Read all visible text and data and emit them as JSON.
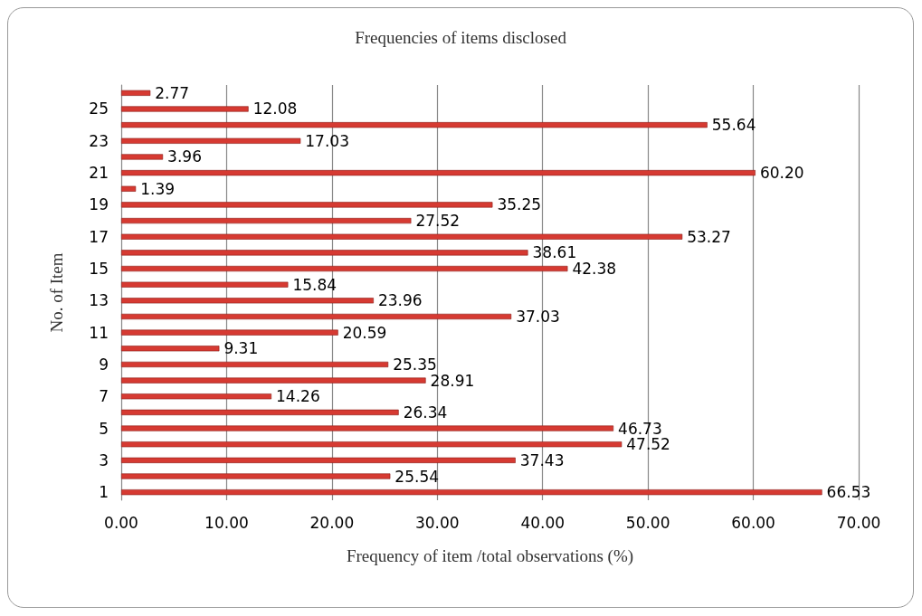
{
  "chart_data": {
    "type": "bar",
    "orientation": "horizontal",
    "title": "Frequencies of items disclosed",
    "xlabel": "Frequency of item /total observations (%)",
    "ylabel": "No. of Item",
    "categories": [
      null,
      "25",
      null,
      "23",
      null,
      "21",
      null,
      "19",
      null,
      "17",
      null,
      "15",
      null,
      "13",
      null,
      "11",
      null,
      "9",
      null,
      "7",
      null,
      "5",
      null,
      "3",
      null,
      "1"
    ],
    "values": [
      2.77,
      12.08,
      55.64,
      17.03,
      3.96,
      60.2,
      1.39,
      35.25,
      27.52,
      53.27,
      38.61,
      42.38,
      15.84,
      23.96,
      37.03,
      20.59,
      9.31,
      25.35,
      28.91,
      14.26,
      26.34,
      46.73,
      47.52,
      37.43,
      25.54,
      66.53
    ],
    "value_labels": [
      "2.77",
      "12.08",
      "55.64",
      "17.03",
      "3.96",
      "60.20",
      "1.39",
      "35.25",
      "27.52",
      "53.27",
      "38.61",
      "42.38",
      "15.84",
      "23.96",
      "37.03",
      "20.59",
      "9.31",
      "25.35",
      "28.91",
      "14.26",
      "26.34",
      "46.73",
      "47.52",
      "37.43",
      "25.54",
      "66.53"
    ],
    "color": "#d63a32",
    "xlim": [
      0,
      70
    ],
    "xticks": [
      {
        "value": 0,
        "label": "0.00"
      },
      {
        "value": 10,
        "label": "10.00"
      },
      {
        "value": 20,
        "label": "20.00"
      },
      {
        "value": 30,
        "label": "30.00"
      },
      {
        "value": 40,
        "label": "40.00"
      },
      {
        "value": 50,
        "label": "50.00"
      },
      {
        "value": 60,
        "label": "60.00"
      },
      {
        "value": 70,
        "label": "70.00"
      }
    ],
    "grid": "x"
  }
}
